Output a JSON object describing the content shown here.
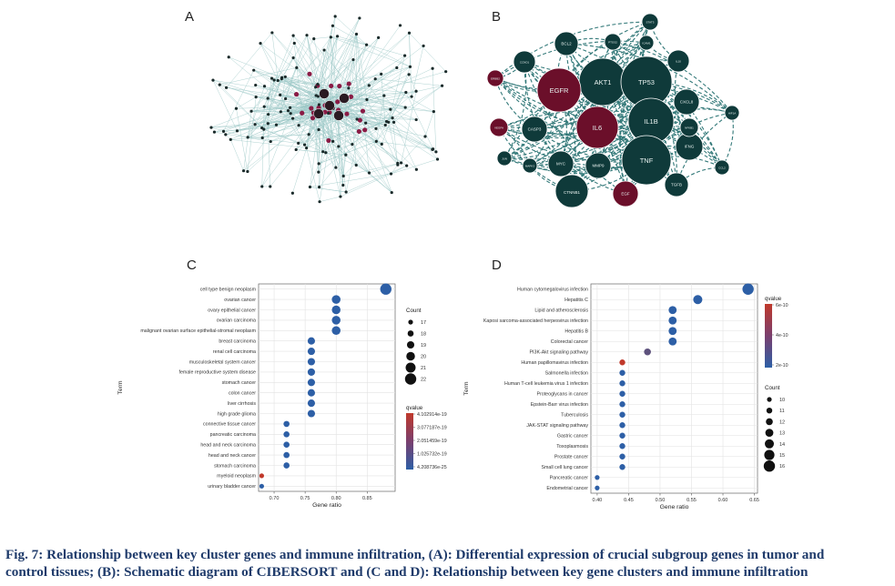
{
  "figure": {
    "panel_labels": {
      "a": "A",
      "b": "B",
      "c": "C",
      "d": "D"
    },
    "caption_line1": "Fig. 7: Relationship between key cluster genes and immune infiltration, (A): Differential expression of crucial subgroup genes in tumor and",
    "caption_line2": "control tissues; (B): Schematic diagram of CIBERSORT and (C and D): Relationship between key gene clusters and immune infiltration"
  },
  "network_b": {
    "nodes": [
      {
        "label": "AKT1",
        "role": "hub",
        "size": "large"
      },
      {
        "label": "TP53",
        "role": "hub",
        "size": "large"
      },
      {
        "label": "EGFR",
        "role": "highlight",
        "size": "large"
      },
      {
        "label": "IL6",
        "role": "highlight",
        "size": "large"
      },
      {
        "label": "IL1B",
        "role": "hub",
        "size": "large"
      },
      {
        "label": "TNF",
        "role": "hub",
        "size": "large"
      },
      {
        "label": "CTNNB1",
        "role": "hub",
        "size": "medium"
      },
      {
        "label": "EGF",
        "role": "highlight",
        "size": "small"
      },
      {
        "label": "TGFB",
        "role": "hub",
        "size": "small"
      },
      {
        "label": "IFNG",
        "role": "hub",
        "size": "small"
      },
      {
        "label": "CXCL8",
        "role": "hub",
        "size": "small"
      },
      {
        "label": "IL10",
        "role": "hub",
        "size": "small"
      },
      {
        "label": "BCL2",
        "role": "hub",
        "size": "small"
      },
      {
        "label": "CASP3",
        "role": "hub",
        "size": "small"
      },
      {
        "label": "MMP9",
        "role": "hub",
        "size": "small"
      },
      {
        "label": "MYC",
        "role": "hub",
        "size": "small"
      },
      {
        "label": "PTGS2",
        "role": "hub",
        "size": "small"
      },
      {
        "label": "CCND1",
        "role": "hub",
        "size": "small"
      },
      {
        "label": "VEGFA",
        "role": "highlight",
        "size": "small"
      },
      {
        "label": "ERBB2",
        "role": "highlight",
        "size": "small"
      },
      {
        "label": "HIF1A",
        "role": "hub",
        "size": "small"
      },
      {
        "label": "STAT3",
        "role": "hub",
        "size": "small"
      },
      {
        "label": "MAPK3",
        "role": "hub",
        "size": "small"
      },
      {
        "label": "JUN",
        "role": "hub",
        "size": "small"
      },
      {
        "label": "CCL2",
        "role": "hub",
        "size": "small"
      },
      {
        "label": "ICAM1",
        "role": "hub",
        "size": "small"
      },
      {
        "label": "NFKB1",
        "role": "hub",
        "size": "small"
      }
    ],
    "colors": {
      "hub": "#0f3a3a",
      "highlight": "#6b0f2a",
      "edge": "#1d6b6b"
    }
  },
  "chart_data": [
    {
      "panel": "C",
      "type": "scatter",
      "xlabel": "Gene ratio",
      "ylabel": "Term",
      "xlim": [
        0.675,
        0.895
      ],
      "xticks": [
        "0.70",
        "0.75",
        "0.80",
        "0.85"
      ],
      "xtick_values": [
        0.7,
        0.75,
        0.8,
        0.85
      ],
      "grid": true,
      "terms": [
        "cell type benign neoplasm",
        "ovarian cancer",
        "ovary epithelial cancer",
        "ovarian carcinoma",
        "malignant ovarian surface epithelial-stromal neoplasm",
        "breast carcinoma",
        "renal cell carcinoma",
        "musculoskeletal system cancer",
        "female reproductive system disease",
        "stomach cancer",
        "colon cancer",
        "liver cirrhosis",
        "high grade glioma",
        "connective tissue cancer",
        "pancreatic carcinoma",
        "head and neck carcinoma",
        "head and neck cancer",
        "stomach carcinoma",
        "myeloid neoplasm",
        "urinary bladder cancer"
      ],
      "gene_ratio": [
        0.88,
        0.8,
        0.8,
        0.8,
        0.8,
        0.76,
        0.76,
        0.76,
        0.76,
        0.76,
        0.76,
        0.76,
        0.76,
        0.72,
        0.72,
        0.72,
        0.72,
        0.72,
        0.68,
        0.68
      ],
      "count": [
        22,
        20,
        20,
        20,
        20,
        19,
        19,
        19,
        19,
        19,
        19,
        19,
        19,
        18,
        18,
        18,
        18,
        18,
        17,
        17
      ],
      "qvalue": [
        4.3e-25,
        4.3e-25,
        4.3e-25,
        4.3e-25,
        4.3e-25,
        4.3e-25,
        4.3e-25,
        4.3e-25,
        4.3e-25,
        4.3e-25,
        4.3e-25,
        4.3e-25,
        4.3e-25,
        4.3e-25,
        4.3e-25,
        4.3e-25,
        4.3e-25,
        4.3e-25,
        4.1e-19,
        4.3e-25
      ],
      "legend_count_title": "Count",
      "legend_count_values": [
        17,
        18,
        19,
        20,
        21,
        22
      ],
      "legend_q_title": "qvalue",
      "legend_q_labels": [
        "4.102914e-19",
        "3.077187e-19",
        "2.051459e-19",
        "1.025732e-19",
        "4.208736e-25"
      ],
      "legend_placement": "right",
      "color_low": "#2d5fa6",
      "color_high": "#c0392b"
    },
    {
      "panel": "D",
      "type": "scatter",
      "xlabel": "Gene ratio",
      "ylabel": "Term",
      "xlim": [
        0.39,
        0.655
      ],
      "xticks": [
        "0.40",
        "0.45",
        "0.50",
        "0.55",
        "0.60",
        "0.65"
      ],
      "xtick_values": [
        0.4,
        0.45,
        0.5,
        0.55,
        0.6,
        0.65
      ],
      "grid": true,
      "terms": [
        "Human cytomegalovirus infection",
        "Hepatitis C",
        "Lipid and atherosclerosis",
        "Kaposi sarcoma-associated herpesvirus infection",
        "Hepatitis B",
        "Colorectal cancer",
        "PI3K-Akt signaling pathway",
        "Human papillomavirus infection",
        "Salmonella infection",
        "Human T-cell leukemia virus 1 infection",
        "Proteoglycans in cancer",
        "Epstein-Barr virus infection",
        "Tuberculosis",
        "JAK-STAT signaling pathway",
        "Gastric cancer",
        "Toxoplasmosis",
        "Prostate cancer",
        "Small cell lung cancer",
        "Pancreatic cancer",
        "Endometrial cancer"
      ],
      "gene_ratio": [
        0.64,
        0.56,
        0.52,
        0.52,
        0.52,
        0.52,
        0.48,
        0.44,
        0.44,
        0.44,
        0.44,
        0.44,
        0.44,
        0.44,
        0.44,
        0.44,
        0.44,
        0.44,
        0.4,
        0.4
      ],
      "count": [
        16,
        14,
        13,
        13,
        13,
        13,
        12,
        11,
        11,
        11,
        11,
        11,
        11,
        11,
        11,
        11,
        11,
        11,
        10,
        10
      ],
      "qvalue": [
        1e-12,
        1e-12,
        1e-12,
        1e-12,
        1e-12,
        1e-12,
        2e-10,
        6e-10,
        1e-12,
        1e-12,
        1e-12,
        1e-12,
        1e-12,
        1e-12,
        1e-12,
        1e-12,
        1e-12,
        1e-12,
        1e-12,
        1e-12
      ],
      "legend_count_title": "Count",
      "legend_count_values": [
        10,
        11,
        12,
        13,
        14,
        15,
        16
      ],
      "legend_q_title": "qvalue",
      "legend_q_labels": [
        "6e-10",
        "4e-10",
        "2e-10"
      ],
      "legend_placement": "right",
      "color_low": "#2d5fa6",
      "color_high": "#c0392b"
    }
  ]
}
